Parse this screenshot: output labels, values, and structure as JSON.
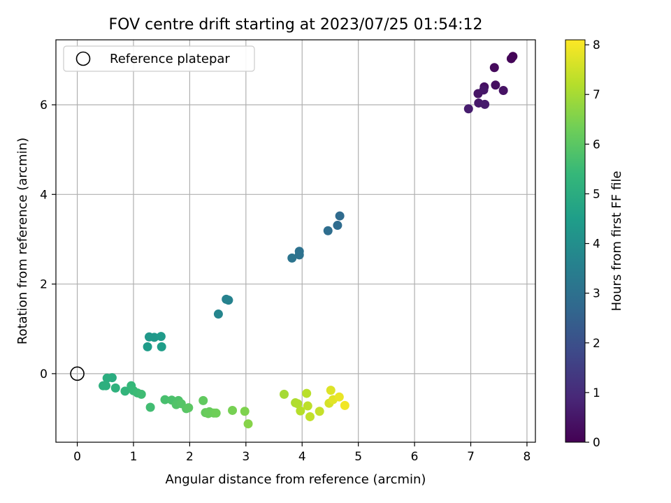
{
  "chart_data": {
    "type": "scatter",
    "title": "FOV centre drift starting at 2023/07/25 01:54:12",
    "xlabel": "Angular distance from reference (arcmin)",
    "ylabel": "Rotation from reference (arcmin)",
    "xlim": [
      -0.38,
      8.15
    ],
    "ylim": [
      -1.53,
      7.45
    ],
    "xticks": [
      0,
      1,
      2,
      3,
      4,
      5,
      6,
      7,
      8
    ],
    "yticks": [
      0,
      2,
      4,
      6
    ],
    "grid": true,
    "legend": {
      "position": "top-left",
      "entries": [
        "Reference platepar"
      ]
    },
    "reference_point": {
      "x": 0,
      "y": 0
    },
    "colorbar": {
      "label": "Hours from first FF file",
      "colormap": "viridis",
      "range": [
        0,
        8.1
      ],
      "ticks": [
        0,
        1,
        2,
        3,
        4,
        5,
        6,
        7,
        8
      ],
      "colors": [
        "#440154",
        "#482878",
        "#3e4989",
        "#31688e",
        "#26828e",
        "#1f9e89",
        "#35b779",
        "#6ece58",
        "#b5de2b",
        "#fde725"
      ]
    },
    "points": [
      {
        "x": 7.75,
        "y": 7.08,
        "h": 0.05
      },
      {
        "x": 7.72,
        "y": 7.03,
        "h": 0.1
      },
      {
        "x": 7.42,
        "y": 6.83,
        "h": 0.2
      },
      {
        "x": 7.44,
        "y": 6.44,
        "h": 0.3
      },
      {
        "x": 7.24,
        "y": 6.4,
        "h": 0.35
      },
      {
        "x": 7.58,
        "y": 6.32,
        "h": 0.4
      },
      {
        "x": 7.13,
        "y": 6.25,
        "h": 0.45
      },
      {
        "x": 7.23,
        "y": 6.33,
        "h": 0.5
      },
      {
        "x": 7.14,
        "y": 6.04,
        "h": 0.55
      },
      {
        "x": 7.25,
        "y": 6.01,
        "h": 0.6
      },
      {
        "x": 6.96,
        "y": 5.91,
        "h": 0.65
      },
      {
        "x": 4.67,
        "y": 3.52,
        "h": 2.8
      },
      {
        "x": 4.63,
        "y": 3.31,
        "h": 2.85
      },
      {
        "x": 4.46,
        "y": 3.19,
        "h": 2.9
      },
      {
        "x": 3.95,
        "y": 2.73,
        "h": 3.0
      },
      {
        "x": 3.95,
        "y": 2.65,
        "h": 3.05
      },
      {
        "x": 3.82,
        "y": 2.58,
        "h": 3.1
      },
      {
        "x": 2.65,
        "y": 1.66,
        "h": 3.55
      },
      {
        "x": 2.69,
        "y": 1.64,
        "h": 3.6
      },
      {
        "x": 2.51,
        "y": 1.33,
        "h": 3.7
      },
      {
        "x": 1.28,
        "y": 0.82,
        "h": 4.3
      },
      {
        "x": 1.37,
        "y": 0.81,
        "h": 4.35
      },
      {
        "x": 1.49,
        "y": 0.83,
        "h": 4.4
      },
      {
        "x": 1.25,
        "y": 0.6,
        "h": 4.45
      },
      {
        "x": 1.5,
        "y": 0.6,
        "h": 4.5
      },
      {
        "x": 0.62,
        "y": -0.09,
        "h": 5.0
      },
      {
        "x": 0.53,
        "y": -0.1,
        "h": 5.05
      },
      {
        "x": 0.46,
        "y": -0.27,
        "h": 5.1
      },
      {
        "x": 0.51,
        "y": -0.27,
        "h": 5.12
      },
      {
        "x": 0.68,
        "y": -0.32,
        "h": 5.2
      },
      {
        "x": 0.85,
        "y": -0.39,
        "h": 5.3
      },
      {
        "x": 0.96,
        "y": -0.27,
        "h": 5.4
      },
      {
        "x": 1.0,
        "y": -0.38,
        "h": 5.45
      },
      {
        "x": 1.07,
        "y": -0.43,
        "h": 5.5
      },
      {
        "x": 1.14,
        "y": -0.46,
        "h": 5.55
      },
      {
        "x": 1.3,
        "y": -0.75,
        "h": 5.6
      },
      {
        "x": 1.56,
        "y": -0.58,
        "h": 5.7
      },
      {
        "x": 1.68,
        "y": -0.59,
        "h": 5.75
      },
      {
        "x": 1.8,
        "y": -0.6,
        "h": 5.8
      },
      {
        "x": 1.76,
        "y": -0.69,
        "h": 5.85
      },
      {
        "x": 1.85,
        "y": -0.67,
        "h": 5.9
      },
      {
        "x": 1.94,
        "y": -0.78,
        "h": 5.95
      },
      {
        "x": 1.98,
        "y": -0.76,
        "h": 6.0
      },
      {
        "x": 2.24,
        "y": -0.6,
        "h": 6.1
      },
      {
        "x": 2.28,
        "y": -0.87,
        "h": 6.15
      },
      {
        "x": 2.35,
        "y": -0.85,
        "h": 6.2
      },
      {
        "x": 2.33,
        "y": -0.89,
        "h": 6.22
      },
      {
        "x": 2.43,
        "y": -0.88,
        "h": 6.25
      },
      {
        "x": 2.47,
        "y": -0.88,
        "h": 6.3
      },
      {
        "x": 2.76,
        "y": -0.82,
        "h": 6.4
      },
      {
        "x": 2.98,
        "y": -0.84,
        "h": 6.5
      },
      {
        "x": 3.04,
        "y": -1.12,
        "h": 6.6
      },
      {
        "x": 3.68,
        "y": -0.46,
        "h": 7.0
      },
      {
        "x": 3.88,
        "y": -0.65,
        "h": 7.1
      },
      {
        "x": 3.92,
        "y": -0.67,
        "h": 7.15
      },
      {
        "x": 3.97,
        "y": -0.83,
        "h": 7.2
      },
      {
        "x": 4.08,
        "y": -0.44,
        "h": 7.25
      },
      {
        "x": 4.1,
        "y": -0.72,
        "h": 7.3
      },
      {
        "x": 4.14,
        "y": -0.96,
        "h": 7.35
      },
      {
        "x": 4.31,
        "y": -0.84,
        "h": 7.4
      },
      {
        "x": 4.48,
        "y": -0.66,
        "h": 7.6
      },
      {
        "x": 4.51,
        "y": -0.37,
        "h": 7.7
      },
      {
        "x": 4.55,
        "y": -0.58,
        "h": 7.75
      },
      {
        "x": 4.66,
        "y": -0.52,
        "h": 7.85
      },
      {
        "x": 4.76,
        "y": -0.71,
        "h": 7.95
      }
    ]
  }
}
